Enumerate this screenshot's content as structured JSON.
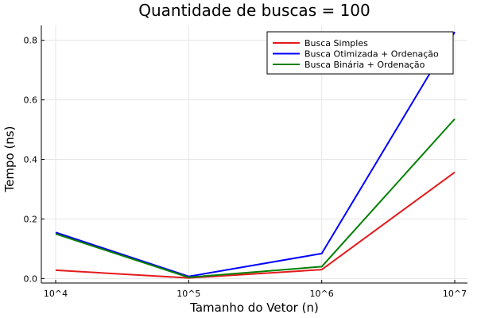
{
  "chart_data": {
    "type": "line",
    "title": "Quantidade de buscas = 100",
    "xlabel": "Tamanho do Vetor (n)",
    "ylabel": "Tempo (ns)",
    "categories": [
      "10^4",
      "10^5",
      "10^6",
      "10^7"
    ],
    "ylim": [
      -0.015,
      0.85
    ],
    "yticks": [
      0.0,
      0.2,
      0.4,
      0.6,
      0.8
    ],
    "ytick_labels": [
      "0.0",
      "0.2",
      "0.4",
      "0.6",
      "0.8"
    ],
    "grid": true,
    "legend_position": "top-right",
    "series": [
      {
        "name": "Busca Simples",
        "color": "#e41a1c",
        "values": [
          0.028,
          0.002,
          0.03,
          0.357
        ]
      },
      {
        "name": "Busca Otimizada + Ordenação",
        "color": "#0000ff",
        "values": [
          0.155,
          0.007,
          0.084,
          0.828
        ]
      },
      {
        "name": "Busca Binária + Ordenação",
        "color": "#008000",
        "values": [
          0.15,
          0.004,
          0.04,
          0.536
        ]
      }
    ]
  }
}
